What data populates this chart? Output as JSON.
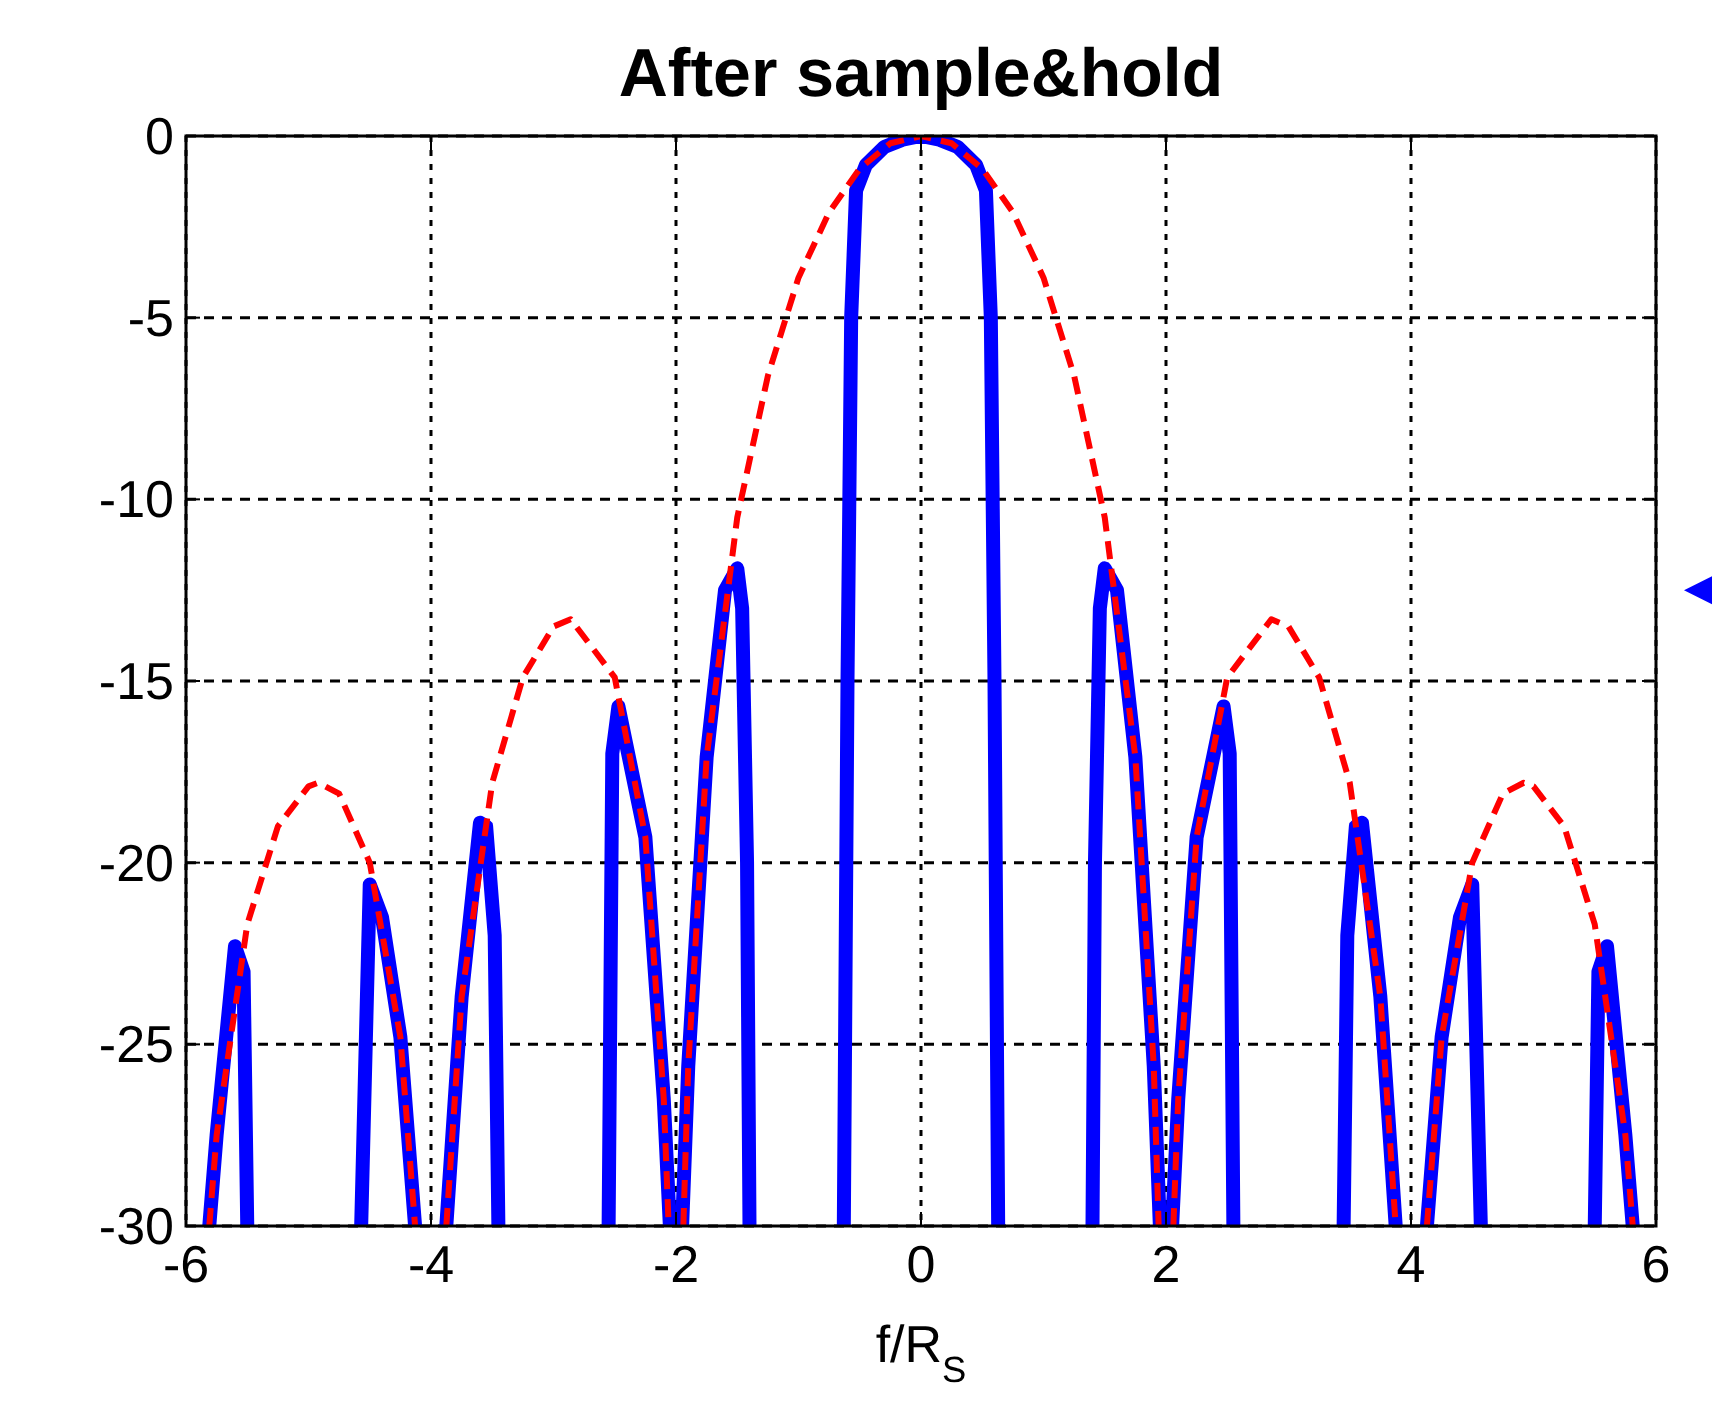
{
  "chart_data": {
    "type": "line",
    "title": "After sample&hold",
    "xlabel": "f/R$_{S}$",
    "xlim": [
      -6,
      6
    ],
    "xticks": [
      -6,
      -4,
      -2,
      0,
      2,
      4,
      6
    ],
    "ylim": [
      -30,
      0
    ],
    "yticks": [
      -30,
      -25,
      -20,
      -15,
      -10,
      -5,
      0
    ],
    "grid": true,
    "marker": "none",
    "series": [
      {
        "color": "#0000ff",
        "line_style": "solid",
        "x": [
          -5.81,
          -5.75,
          -5.6,
          -5.53,
          -5.5,
          -5.0,
          -4.57,
          -4.5,
          -4.4,
          -4.25,
          -4.13,
          -4.0,
          -3.875,
          -3.75,
          -3.6,
          -3.55,
          -3.48,
          -3.45,
          -3.0,
          -2.55,
          -2.52,
          -2.47,
          -2.25,
          -2.1,
          -2.05,
          -2.0,
          -1.95,
          -1.9,
          -1.75,
          -1.6,
          -1.5,
          -1.46,
          -1.42,
          -1.4,
          -1.0,
          -0.63,
          -0.6,
          -0.57,
          -0.53,
          -0.45,
          -0.3,
          -0.15,
          0,
          0.15,
          0.3,
          0.45,
          0.53,
          0.57,
          0.6,
          0.63,
          1.0,
          1.4,
          1.42,
          1.46,
          1.5,
          1.6,
          1.75,
          1.9,
          1.95,
          2.0,
          2.05,
          2.1,
          2.25,
          2.47,
          2.52,
          2.55,
          3.0,
          3.45,
          3.48,
          3.55,
          3.6,
          3.75,
          3.875,
          4.0,
          4.13,
          4.25,
          4.4,
          4.5,
          4.57,
          5.0,
          5.5,
          5.53,
          5.6,
          5.75,
          5.81
        ],
        "values": [
          -30,
          -27.5,
          -22.3,
          -23,
          -30,
          null,
          -30,
          -20.6,
          -21.5,
          -24.8,
          -30,
          null,
          -30,
          -23.7,
          -18.9,
          -19,
          -22,
          -30,
          null,
          -30,
          -17,
          -15.7,
          -19.3,
          -26.5,
          -30,
          null,
          -30,
          -25.6,
          -17.1,
          -12.5,
          -11.9,
          -13,
          -20,
          -30,
          null,
          -30,
          -15,
          -5,
          -1.5,
          -0.8,
          -0.3,
          -0.1,
          0,
          -0.1,
          -0.3,
          -0.8,
          -1.5,
          -5,
          -15,
          -30,
          null,
          -30,
          -20,
          -13,
          -11.9,
          -12.5,
          -17.1,
          -25.6,
          -30,
          null,
          -30,
          -26.5,
          -19.3,
          -15.7,
          -17,
          -30,
          null,
          -30,
          -22,
          -19,
          -18.9,
          -23.7,
          -30,
          null,
          -30,
          -24.8,
          -21.5,
          -20.6,
          -30,
          null,
          -30,
          -23,
          -22.3,
          -27.5,
          -30
        ]
      },
      {
        "color": "#ff0000",
        "line_style": "dashed",
        "x": [
          -5.81,
          -5.75,
          -5.5,
          -5.25,
          -5,
          -4.92,
          -4.75,
          -4.5,
          -4.25,
          -4.13,
          -4,
          -3.875,
          -3.75,
          -3.5,
          -3.25,
          -3,
          -2.86,
          -2.5,
          -2.25,
          -2.1,
          -2.06,
          -2,
          -1.94,
          -1.9,
          -1.75,
          -1.5,
          -1.25,
          -1,
          -0.75,
          -0.5,
          -0.25,
          0,
          0.25,
          0.5,
          0.75,
          1,
          1.25,
          1.5,
          1.75,
          1.9,
          1.94,
          2,
          2.06,
          2.1,
          2.25,
          2.5,
          2.86,
          3,
          3.25,
          3.5,
          3.75,
          3.875,
          4,
          4.13,
          4.25,
          4.5,
          4.75,
          4.92,
          5,
          5.25,
          5.5,
          5.75,
          5.81
        ],
        "values": [
          -30,
          -27.5,
          -21.7,
          -19,
          -17.9,
          -17.8,
          -18.1,
          -20,
          -24.8,
          -30,
          null,
          -30,
          -23.7,
          -17.8,
          -14.9,
          -13.5,
          -13.3,
          -14.9,
          -19.3,
          -26.5,
          -30,
          null,
          -30,
          -25.6,
          -17.1,
          -10.5,
          -6.6,
          -3.9,
          -2.1,
          -0.9,
          -0.2,
          0,
          -0.2,
          -0.9,
          -2.1,
          -3.9,
          -6.6,
          -10.5,
          -17.1,
          -25.6,
          -30,
          null,
          -30,
          -26.5,
          -19.3,
          -14.9,
          -13.3,
          -13.5,
          -14.9,
          -17.8,
          -23.7,
          -30,
          null,
          -30,
          -24.8,
          -20,
          -18.1,
          -17.8,
          -17.9,
          -19,
          -21.7,
          -27.5,
          -30
        ]
      }
    ]
  }
}
